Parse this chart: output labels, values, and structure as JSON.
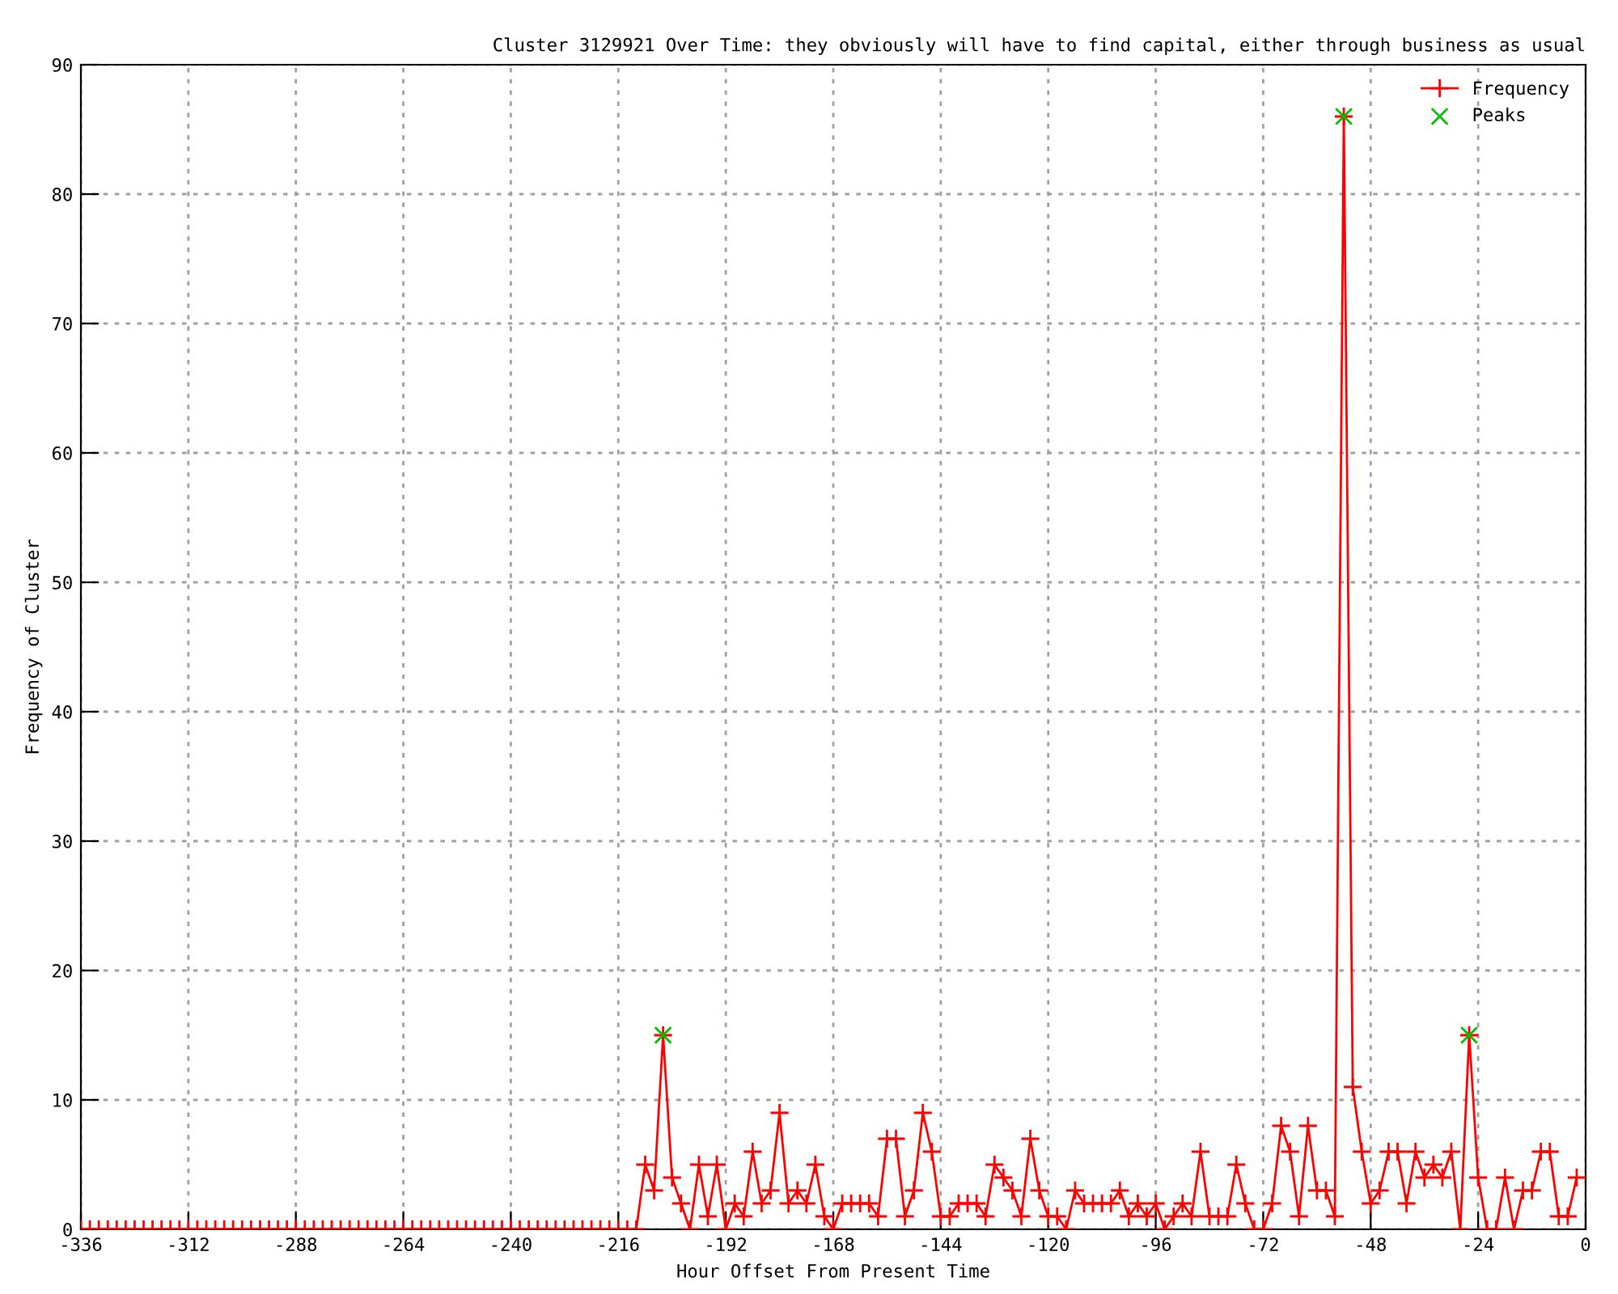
{
  "chart_data": {
    "type": "line",
    "title": "Cluster 3129921 Over Time: they obviously will have to find capital, either through business as usual",
    "xlabel": "Hour Offset From Present Time",
    "ylabel": "Frequency of Cluster",
    "xlim": [
      -336,
      0
    ],
    "xticks": [
      -336,
      -312,
      -288,
      -264,
      -240,
      -216,
      -192,
      -168,
      -144,
      -120,
      -96,
      -72,
      -48,
      -24,
      0
    ],
    "ylim": [
      0,
      90
    ],
    "yticks": [
      0,
      10,
      20,
      30,
      40,
      50,
      60,
      70,
      80,
      90
    ],
    "grid": true,
    "legend": "top right",
    "line_style": "solid",
    "series": [
      {
        "name": "Frequency",
        "marker": "cross",
        "color": "#ff0000",
        "x": [
          -336,
          -334,
          -332,
          -330,
          -328,
          -326,
          -324,
          -322,
          -320,
          -318,
          -316,
          -314,
          -312,
          -310,
          -308,
          -306,
          -304,
          -302,
          -300,
          -298,
          -296,
          -294,
          -292,
          -290,
          -288,
          -286,
          -284,
          -282,
          -280,
          -278,
          -276,
          -274,
          -272,
          -270,
          -268,
          -266,
          -264,
          -262,
          -260,
          -258,
          -256,
          -254,
          -252,
          -250,
          -248,
          -246,
          -244,
          -242,
          -240,
          -238,
          -236,
          -234,
          -232,
          -230,
          -228,
          -226,
          -224,
          -222,
          -220,
          -218,
          -216,
          -214,
          -212,
          -210,
          -208,
          -206,
          -204,
          -202,
          -200,
          -198,
          -196,
          -194,
          -192,
          -190,
          -188,
          -186,
          -184,
          -182,
          -180,
          -178,
          -176,
          -174,
          -172,
          -170,
          -168,
          -166,
          -164,
          -162,
          -160,
          -158,
          -156,
          -154,
          -152,
          -150,
          -148,
          -146,
          -144,
          -142,
          -140,
          -138,
          -136,
          -134,
          -132,
          -130,
          -128,
          -126,
          -124,
          -122,
          -120,
          -118,
          -116,
          -114,
          -112,
          -110,
          -108,
          -106,
          -104,
          -102,
          -100,
          -98,
          -96,
          -94,
          -92,
          -90,
          -88,
          -86,
          -84,
          -82,
          -80,
          -78,
          -76,
          -74,
          -72,
          -70,
          -68,
          -66,
          -64,
          -62,
          -60,
          -58,
          -56,
          -54,
          -52,
          -50,
          -48,
          -46,
          -44,
          -42,
          -40,
          -38,
          -36,
          -34,
          -32,
          -30,
          -28,
          -26,
          -24,
          -22,
          -20,
          -18,
          -16,
          -14,
          -12,
          -10,
          -8,
          -6,
          -4,
          -2
        ],
        "values": [
          0,
          0,
          0,
          0,
          0,
          0,
          0,
          0,
          0,
          0,
          0,
          0,
          0,
          0,
          0,
          0,
          0,
          0,
          0,
          0,
          0,
          0,
          0,
          0,
          0,
          0,
          0,
          0,
          0,
          0,
          0,
          0,
          0,
          0,
          0,
          0,
          0,
          0,
          0,
          0,
          0,
          0,
          0,
          0,
          0,
          0,
          0,
          0,
          0,
          0,
          0,
          0,
          0,
          0,
          0,
          0,
          0,
          0,
          0,
          0,
          0,
          0,
          0,
          5,
          3,
          15,
          4,
          2,
          0,
          5,
          1,
          5,
          0,
          2,
          1,
          6,
          2,
          3,
          9,
          2,
          3,
          2,
          5,
          1,
          0,
          2,
          2,
          2,
          2,
          1,
          7,
          7,
          1,
          3,
          9,
          6,
          1,
          1,
          2,
          2,
          2,
          1,
          5,
          4,
          3,
          1,
          7,
          3,
          1,
          1,
          0,
          3,
          2,
          2,
          2,
          2,
          3,
          1,
          2,
          1,
          2,
          0,
          1,
          2,
          1,
          6,
          1,
          1,
          1,
          5,
          2,
          0,
          0,
          2,
          8,
          6,
          1,
          8,
          3,
          3,
          1,
          86,
          11,
          6,
          2,
          3,
          6,
          6,
          2,
          6,
          4,
          5,
          4,
          6,
          0,
          15,
          4,
          0,
          0,
          4,
          0,
          3,
          3,
          6,
          6,
          1,
          1,
          4
        ]
      },
      {
        "name": "Peaks",
        "type": "scatter",
        "marker": "cross",
        "color": "#00c000",
        "x": [
          -206,
          -54,
          -26
        ],
        "values": [
          15,
          86,
          15
        ]
      }
    ]
  }
}
